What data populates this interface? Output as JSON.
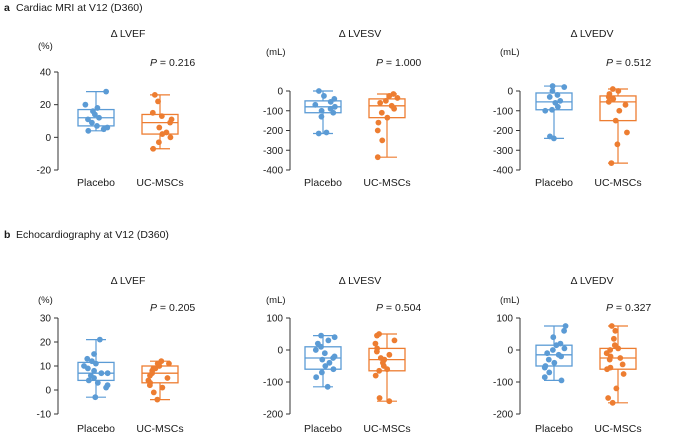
{
  "colors": {
    "placebo": "#5b9bd5",
    "ucmsc": "#ed7d31",
    "axis": "#333333"
  },
  "sections": [
    {
      "letter": "a",
      "title": "Cardiac MRI at V12 (D360)"
    },
    {
      "letter": "b",
      "title": "Echocardiography at V12 (D360)"
    }
  ],
  "chart_data": [
    {
      "type": "box",
      "section": "a",
      "title": "Δ LVEF",
      "ylabel": "(%)",
      "p_prefix": "P",
      "p_value": " = 0.216",
      "ylim": [
        -20,
        40
      ],
      "yticks": [
        -20,
        0,
        20,
        40
      ],
      "categories": [
        "Placebo",
        "UC-MSCs"
      ],
      "series": [
        {
          "name": "Placebo",
          "whisker_low": 4,
          "q1": 7,
          "median": 12,
          "q3": 17,
          "whisker_high": 28,
          "points": [
            28,
            20,
            18,
            16,
            14,
            12,
            11,
            9,
            7,
            6,
            5,
            4
          ]
        },
        {
          "name": "UC-MSCs",
          "whisker_low": -7,
          "q1": 2,
          "median": 9,
          "q3": 14,
          "whisker_high": 26,
          "points": [
            26,
            22,
            15,
            13,
            11,
            9,
            6,
            3,
            2,
            0,
            -3,
            -7
          ]
        }
      ]
    },
    {
      "type": "box",
      "section": "a",
      "title": "Δ LVESV",
      "ylabel": "(mL)",
      "p_prefix": "P",
      "p_value": " = 1.000",
      "ylim": [
        -400,
        0
      ],
      "yticks": [
        0,
        -100,
        -200,
        -300,
        -400
      ],
      "categories": [
        "Placebo",
        "UC-MSCs"
      ],
      "series": [
        {
          "name": "Placebo",
          "whisker_low": -215,
          "q1": -110,
          "median": -80,
          "q3": -50,
          "whisker_high": 0,
          "points": [
            0,
            -25,
            -40,
            -55,
            -70,
            -80,
            -90,
            -100,
            -110,
            -130,
            -210,
            -215
          ]
        },
        {
          "name": "UC-MSCs",
          "whisker_low": -335,
          "q1": -135,
          "median": -75,
          "q3": -40,
          "whisker_high": -15,
          "points": [
            -15,
            -25,
            -35,
            -50,
            -60,
            -75,
            -90,
            -110,
            -135,
            -160,
            -200,
            -250,
            -335
          ]
        }
      ]
    },
    {
      "type": "box",
      "section": "a",
      "title": "Δ LVEDV",
      "ylabel": "(mL)",
      "p_prefix": "P",
      "p_value": " = 0.512",
      "ylim": [
        -400,
        0
      ],
      "yticks": [
        0,
        -100,
        -200,
        -300,
        -400
      ],
      "categories": [
        "Placebo",
        "UC-MSCs"
      ],
      "series": [
        {
          "name": "Placebo",
          "whisker_low": -240,
          "q1": -95,
          "median": -55,
          "q3": -10,
          "whisker_high": 25,
          "points": [
            25,
            20,
            0,
            -20,
            -30,
            -50,
            -60,
            -80,
            -95,
            -100,
            -230,
            -240
          ]
        },
        {
          "name": "UC-MSCs",
          "whisker_low": -365,
          "q1": -150,
          "median": -55,
          "q3": -25,
          "whisker_high": 10,
          "points": [
            10,
            0,
            -15,
            -30,
            -40,
            -55,
            -70,
            -100,
            -150,
            -210,
            -270,
            -365
          ]
        }
      ]
    },
    {
      "type": "box",
      "section": "b",
      "title": "Δ LVEF",
      "ylabel": "(%)",
      "p_prefix": "P",
      "p_value": " = 0.205",
      "ylim": [
        -10,
        30
      ],
      "yticks": [
        -10,
        0,
        10,
        20,
        30
      ],
      "categories": [
        "Placebo",
        "UC-MSCs"
      ],
      "series": [
        {
          "name": "Placebo",
          "whisker_low": -3,
          "q1": 4,
          "median": 7,
          "q3": 11.5,
          "whisker_high": 21,
          "points": [
            21,
            15,
            13,
            12,
            11,
            10,
            9,
            8,
            7,
            7,
            6,
            5,
            4,
            3,
            2,
            1,
            -3
          ]
        },
        {
          "name": "UC-MSCs",
          "whisker_low": -4,
          "q1": 3,
          "median": 7,
          "q3": 10,
          "whisker_high": 12,
          "points": [
            12,
            11,
            11,
            10,
            9,
            9,
            8,
            7,
            6,
            5,
            4,
            3,
            2,
            1,
            -1,
            -4
          ]
        }
      ]
    },
    {
      "type": "box",
      "section": "b",
      "title": "Δ LVESV",
      "ylabel": "(mL)",
      "p_prefix": "P",
      "p_value": " = 0.504",
      "ylim": [
        -200,
        100
      ],
      "yticks": [
        -200,
        -100,
        0,
        100
      ],
      "categories": [
        "Placebo",
        "UC-MSCs"
      ],
      "series": [
        {
          "name": "Placebo",
          "whisker_low": -115,
          "q1": -60,
          "median": -25,
          "q3": 10,
          "whisker_high": 45,
          "points": [
            45,
            40,
            30,
            20,
            10,
            0,
            -10,
            -20,
            -25,
            -30,
            -40,
            -50,
            -60,
            -70,
            -85,
            -115
          ]
        },
        {
          "name": "UC-MSCs",
          "whisker_low": -160,
          "q1": -65,
          "median": -30,
          "q3": 5,
          "whisker_high": 50,
          "points": [
            50,
            45,
            30,
            20,
            5,
            -5,
            -15,
            -25,
            -30,
            -40,
            -50,
            -60,
            -65,
            -80,
            -150,
            -160
          ]
        }
      ]
    },
    {
      "type": "box",
      "section": "b",
      "title": "Δ LVEDV",
      "ylabel": "(mL)",
      "p_prefix": "P",
      "p_value": " = 0.327",
      "ylim": [
        -200,
        100
      ],
      "yticks": [
        -200,
        -100,
        0,
        100
      ],
      "categories": [
        "Placebo",
        "UC-MSCs"
      ],
      "series": [
        {
          "name": "Placebo",
          "whisker_low": -95,
          "q1": -50,
          "median": -15,
          "q3": 15,
          "whisker_high": 75,
          "points": [
            75,
            60,
            40,
            20,
            15,
            5,
            0,
            -10,
            -15,
            -20,
            -30,
            -40,
            -50,
            -55,
            -70,
            -85,
            -95
          ]
        },
        {
          "name": "UC-MSCs",
          "whisker_low": -165,
          "q1": -60,
          "median": -25,
          "q3": 5,
          "whisker_high": 75,
          "points": [
            75,
            60,
            35,
            15,
            5,
            0,
            -10,
            -20,
            -25,
            -30,
            -45,
            -55,
            -60,
            -75,
            -120,
            -150,
            -165
          ]
        }
      ]
    }
  ]
}
